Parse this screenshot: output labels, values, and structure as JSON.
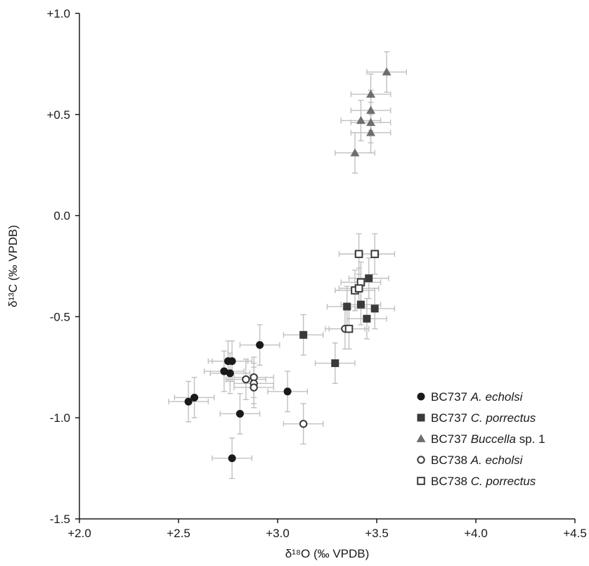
{
  "chart_data": {
    "type": "scatter",
    "title": "",
    "xlabel": "δ¹⁸O (‰ VPDB)",
    "ylabel": "δ¹³C (‰ VPDB)",
    "xlim": [
      2.0,
      4.5
    ],
    "ylim": [
      -1.5,
      1.0
    ],
    "x_ticks": [
      2.0,
      2.5,
      3.0,
      3.5,
      4.0,
      4.5
    ],
    "x_tick_labels": [
      "+2.0",
      "+2.5",
      "+3.0",
      "+3.5",
      "+4.0",
      "+4.5"
    ],
    "y_ticks": [
      -1.5,
      -1.0,
      -0.5,
      0.0,
      0.5,
      1.0
    ],
    "y_tick_labels": [
      "-1.5",
      "-1.0",
      "-0.5",
      "0.0",
      "+0.5",
      "+1.0"
    ],
    "grid": false,
    "legend_position": "bottom-right",
    "error_bar_color": "#c0c0c0",
    "error_x": 0.1,
    "error_y": 0.1,
    "series": [
      {
        "name": "BC737 A. echolsi",
        "label_parts": [
          {
            "text": "BC737 ",
            "italic": false
          },
          {
            "text": "A. echolsi",
            "italic": true
          }
        ],
        "marker": "circle-filled",
        "color": "#1a1a1a",
        "points": [
          [
            2.55,
            -0.92
          ],
          [
            2.58,
            -0.9
          ],
          [
            2.73,
            -0.77
          ],
          [
            2.75,
            -0.72
          ],
          [
            2.77,
            -0.72
          ],
          [
            2.76,
            -0.78
          ],
          [
            2.91,
            -0.64
          ],
          [
            2.81,
            -0.98
          ],
          [
            2.77,
            -1.2
          ],
          [
            3.05,
            -0.87
          ]
        ]
      },
      {
        "name": "BC737 C. porrectus",
        "label_parts": [
          {
            "text": "BC737 ",
            "italic": false
          },
          {
            "text": "C. porrectus",
            "italic": true
          }
        ],
        "marker": "square-filled",
        "color": "#3a3a3a",
        "points": [
          [
            3.13,
            -0.59
          ],
          [
            3.29,
            -0.73
          ],
          [
            3.35,
            -0.45
          ],
          [
            3.42,
            -0.44
          ],
          [
            3.46,
            -0.31
          ],
          [
            3.49,
            -0.46
          ],
          [
            3.45,
            -0.51
          ]
        ]
      },
      {
        "name": "BC737 Buccella sp. 1",
        "label_parts": [
          {
            "text": "BC737 ",
            "italic": false
          },
          {
            "text": "Buccella",
            "italic": true
          },
          {
            "text": " sp. 1",
            "italic": false
          }
        ],
        "marker": "triangle-filled",
        "color": "#6e6e6e",
        "points": [
          [
            3.55,
            0.71
          ],
          [
            3.47,
            0.6
          ],
          [
            3.47,
            0.52
          ],
          [
            3.42,
            0.47
          ],
          [
            3.47,
            0.46
          ],
          [
            3.47,
            0.41
          ],
          [
            3.39,
            0.31
          ]
        ]
      },
      {
        "name": "BC738 A. echolsi",
        "label_parts": [
          {
            "text": "BC738 ",
            "italic": false
          },
          {
            "text": "A. echolsi",
            "italic": true
          }
        ],
        "marker": "circle-open",
        "color": "#3a3a3a",
        "points": [
          [
            2.84,
            -0.81
          ],
          [
            2.88,
            -0.8
          ],
          [
            2.88,
            -0.83
          ],
          [
            2.88,
            -0.85
          ],
          [
            3.34,
            -0.56
          ],
          [
            3.13,
            -1.03
          ]
        ]
      },
      {
        "name": "BC738 C. porrectus",
        "label_parts": [
          {
            "text": "BC738 ",
            "italic": false
          },
          {
            "text": "C. porrectus",
            "italic": true
          }
        ],
        "marker": "square-open",
        "color": "#3a3a3a",
        "points": [
          [
            3.41,
            -0.19
          ],
          [
            3.49,
            -0.19
          ],
          [
            3.42,
            -0.33
          ],
          [
            3.39,
            -0.37
          ],
          [
            3.41,
            -0.36
          ],
          [
            3.36,
            -0.56
          ]
        ]
      }
    ]
  }
}
